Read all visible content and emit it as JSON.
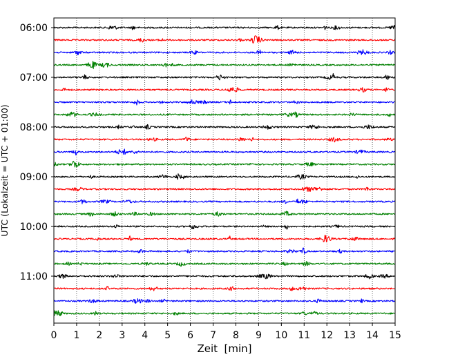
{
  "chart_data": {
    "type": "line",
    "title": "",
    "xlabel": "Zeit  [min]",
    "ylabel": "UTC (Lokalzeit = UTC + 01:00)",
    "xlim": [
      0,
      15
    ],
    "x_ticks": [
      0,
      1,
      2,
      3,
      4,
      5,
      6,
      7,
      8,
      9,
      10,
      11,
      12,
      13,
      14,
      15
    ],
    "x_grid": "dotted vertical lines at each minute",
    "y_tick_labels": [
      "06:00",
      "07:00",
      "08:00",
      "09:00",
      "10:00",
      "11:00"
    ],
    "row_interval_min": 15,
    "trace_color_cycle": [
      "#000000",
      "#ff0000",
      "#0000ff",
      "#008000"
    ],
    "rows": [
      {
        "start": "06:00",
        "color": "#000000"
      },
      {
        "start": "06:15",
        "color": "#ff0000"
      },
      {
        "start": "06:30",
        "color": "#0000ff"
      },
      {
        "start": "06:45",
        "color": "#008000"
      },
      {
        "start": "07:00",
        "color": "#000000"
      },
      {
        "start": "07:15",
        "color": "#ff0000"
      },
      {
        "start": "07:30",
        "color": "#0000ff"
      },
      {
        "start": "07:45",
        "color": "#008000"
      },
      {
        "start": "08:00",
        "color": "#000000"
      },
      {
        "start": "08:15",
        "color": "#ff0000"
      },
      {
        "start": "08:30",
        "color": "#0000ff"
      },
      {
        "start": "08:45",
        "color": "#008000"
      },
      {
        "start": "09:00",
        "color": "#000000"
      },
      {
        "start": "09:15",
        "color": "#ff0000"
      },
      {
        "start": "09:30",
        "color": "#0000ff"
      },
      {
        "start": "09:45",
        "color": "#008000"
      },
      {
        "start": "10:00",
        "color": "#000000"
      },
      {
        "start": "10:15",
        "color": "#ff0000"
      },
      {
        "start": "10:30",
        "color": "#0000ff"
      },
      {
        "start": "10:45",
        "color": "#008000"
      },
      {
        "start": "11:00",
        "color": "#000000"
      },
      {
        "start": "11:15",
        "color": "#ff0000"
      },
      {
        "start": "11:30",
        "color": "#0000ff"
      },
      {
        "start": "11:45",
        "color": "#008000"
      }
    ]
  }
}
